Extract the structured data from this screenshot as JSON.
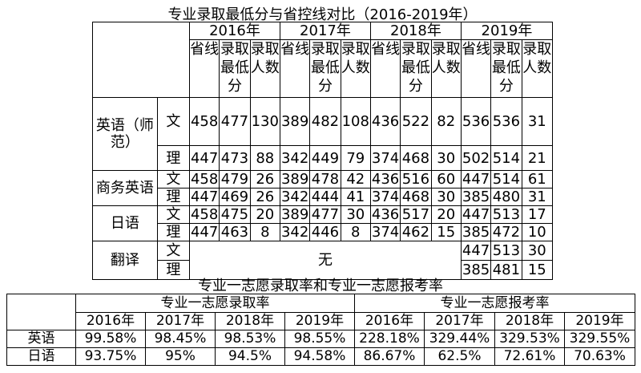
{
  "table1": {
    "title": "专业录取最低分与省控线对比（2016-2019年）",
    "years": [
      "2016年",
      "2017年",
      "2018年",
      "2019年"
    ],
    "sub_headers": [
      "省线",
      "录取最低分",
      "录取人数"
    ],
    "majors": [
      {
        "name": "英语（师范）",
        "rows": [
          {
            "track": "文",
            "values": [
              "458",
              "477",
              "130",
              "389",
              "482",
              "108",
              "436",
              "522",
              "82",
              "536",
              "536",
              "31"
            ]
          },
          {
            "track": "理",
            "values": [
              "447",
              "473",
              "88",
              "342",
              "449",
              "79",
              "374",
              "468",
              "30",
              "502",
              "514",
              "21"
            ]
          }
        ]
      },
      {
        "name": "商务英语",
        "rows": [
          {
            "track": "文",
            "values": [
              "458",
              "479",
              "26",
              "389",
              "478",
              "42",
              "436",
              "516",
              "60",
              "447",
              "514",
              "61"
            ]
          },
          {
            "track": "理",
            "values": [
              "447",
              "469",
              "26",
              "342",
              "444",
              "41",
              "374",
              "468",
              "30",
              "385",
              "480",
              "31"
            ]
          }
        ]
      },
      {
        "name": "日语",
        "rows": [
          {
            "track": "文",
            "values": [
              "458",
              "475",
              "20",
              "389",
              "477",
              "30",
              "436",
              "517",
              "20",
              "447",
              "513",
              "17"
            ]
          },
          {
            "track": "理",
            "values": [
              "447",
              "463",
              "8",
              "342",
              "446",
              "8",
              "374",
              "462",
              "15",
              "385",
              "472",
              "10"
            ]
          }
        ]
      }
    ],
    "translation": {
      "name": "翻译",
      "none_label": "无",
      "rows": [
        {
          "track": "文",
          "values": [
            "447",
            "513",
            "30"
          ]
        },
        {
          "track": "理",
          "values": [
            "385",
            "481",
            "15"
          ]
        }
      ]
    }
  },
  "table2": {
    "title": "专业一志愿录取率和专业一志愿报考率",
    "group_headers": [
      "专业一志愿录取率",
      "专业一志愿报考率"
    ],
    "years": [
      "2016年",
      "2017年",
      "2018年",
      "2019年",
      "2016年",
      "2017年",
      "2018年",
      "2019年"
    ],
    "rows": [
      {
        "name": "英语",
        "values": [
          "99.58%",
          "98.45%",
          "98.53%",
          "98.55%",
          "228.18%",
          "329.44%",
          "329.53%",
          "329.55%"
        ]
      },
      {
        "name": "日语",
        "values": [
          "93.75%",
          "95%",
          "94.5%",
          "94.58%",
          "86.67%",
          "62.5%",
          "72.61%",
          "70.63%"
        ]
      }
    ]
  }
}
